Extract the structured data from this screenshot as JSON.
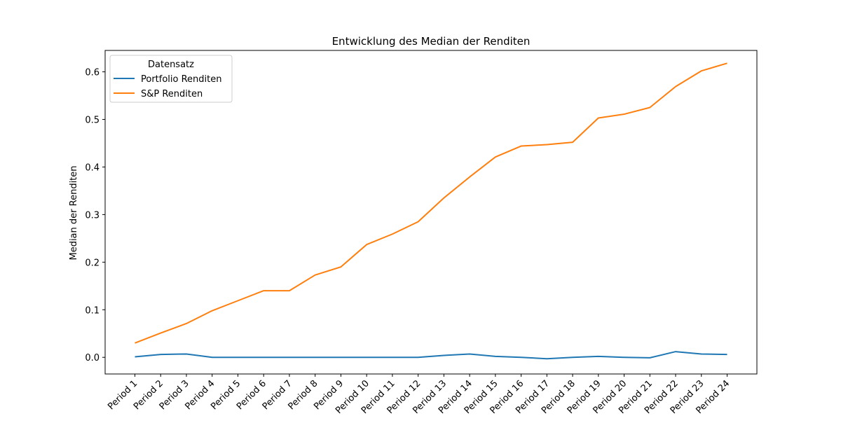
{
  "chart_data": {
    "type": "line",
    "title": "Entwicklung des Median der Renditen",
    "xlabel": "",
    "ylabel": "Median der Renditen",
    "ylim": [
      -0.035,
      0.645
    ],
    "yticks": [
      "0.0",
      "0.1",
      "0.2",
      "0.3",
      "0.4",
      "0.5",
      "0.6"
    ],
    "ytick_values": [
      0.0,
      0.1,
      0.2,
      0.3,
      0.4,
      0.5,
      0.6
    ],
    "grid": false,
    "legend": {
      "title": "Datensatz",
      "placement": "top-left"
    },
    "categories": [
      "Period 1",
      "Period 2",
      "Period 3",
      "Period 4",
      "Period 5",
      "Period 6",
      "Period 7",
      "Period 8",
      "Period 9",
      "Period 10",
      "Period 11",
      "Period 12",
      "Period 13",
      "Period 14",
      "Period 15",
      "Period 16",
      "Period 17",
      "Period 18",
      "Period 19",
      "Period 20",
      "Period 21",
      "Period 22",
      "Period 23",
      "Period 24"
    ],
    "series": [
      {
        "name": "Portfolio Renditen",
        "color": "#1f77b4",
        "values": [
          0.001,
          0.006,
          0.007,
          0.0,
          0.0,
          0.0,
          0.0,
          0.0,
          0.0,
          0.0,
          0.0,
          0.0,
          0.004,
          0.007,
          0.002,
          0.0,
          -0.003,
          0.0,
          0.002,
          0.0,
          -0.001,
          0.012,
          0.007,
          0.006
        ]
      },
      {
        "name": "S&P Renditen",
        "color": "#ff7f0e",
        "values": [
          0.03,
          0.051,
          0.071,
          0.098,
          0.119,
          0.14,
          0.14,
          0.173,
          0.19,
          0.237,
          0.259,
          0.285,
          0.335,
          0.379,
          0.421,
          0.444,
          0.447,
          0.452,
          0.503,
          0.511,
          0.525,
          0.569,
          0.602,
          0.618
        ]
      }
    ]
  }
}
